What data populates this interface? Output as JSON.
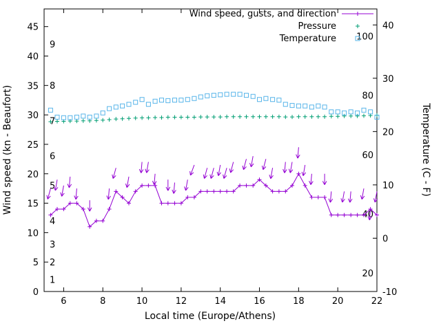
{
  "chart_data": {
    "type": "line",
    "title": "",
    "xlabel": "Local time (Europe/Athens)",
    "ylabel_left": "Wind speed (kn - Beaufort)",
    "ylabel_right": "Temperature (C - F)",
    "xlim": [
      5,
      22
    ],
    "ylim_left": [
      0,
      48
    ],
    "ylim_right": [
      -10,
      43
    ],
    "xticks": [
      6,
      8,
      10,
      12,
      14,
      16,
      18,
      20,
      22
    ],
    "yticks_left": [
      0,
      5,
      10,
      15,
      20,
      25,
      30,
      35,
      40,
      45
    ],
    "yticks_right": [
      -10,
      0,
      10,
      20,
      30,
      40
    ],
    "grid": false,
    "legend_position": "top-right-inside",
    "legend": [
      {
        "label": "Wind speed, gusts, and direction",
        "marker": "line-plus",
        "color": "#9400d3"
      },
      {
        "label": "Pressure",
        "marker": "plus",
        "color": "#009e73"
      },
      {
        "label": "Temperature",
        "marker": "open-square",
        "color": "#56b4e9"
      }
    ],
    "beaufort_labels": [
      {
        "b": 1,
        "kn": 1
      },
      {
        "b": 2,
        "kn": 4
      },
      {
        "b": 3,
        "kn": 7
      },
      {
        "b": 4,
        "kn": 11
      },
      {
        "b": 5,
        "kn": 17
      },
      {
        "b": 6,
        "kn": 22
      },
      {
        "b": 7,
        "kn": 28
      },
      {
        "b": 8,
        "kn": 34
      },
      {
        "b": 9,
        "kn": 41
      }
    ],
    "fahrenheit_labels": [
      20,
      40,
      60,
      80,
      100
    ],
    "x": [
      5.33,
      5.67,
      6,
      6.33,
      6.67,
      7,
      7.33,
      7.67,
      8,
      8.33,
      8.67,
      9,
      9.33,
      9.67,
      10,
      10.33,
      10.67,
      11,
      11.33,
      11.67,
      12,
      12.33,
      12.67,
      13,
      13.33,
      13.67,
      14,
      14.33,
      14.67,
      15,
      15.33,
      15.67,
      16,
      16.33,
      16.67,
      17,
      17.33,
      17.67,
      18,
      18.33,
      18.67,
      19,
      19.33,
      19.67,
      20,
      20.33,
      20.67,
      21,
      21.33,
      21.67,
      22
    ],
    "wind_speed_kn": [
      13,
      14,
      14,
      15,
      15,
      14,
      11,
      12,
      12,
      14,
      17,
      16,
      15,
      17,
      18,
      18,
      18,
      15,
      15,
      15,
      15,
      16,
      16,
      17,
      17,
      17,
      17,
      17,
      17,
      18,
      18,
      18,
      19,
      18,
      17,
      17,
      17,
      18,
      20,
      18,
      16,
      16,
      16,
      13,
      13,
      13,
      13,
      13,
      13,
      14,
      13
    ],
    "pressure_inhg": [
      28.85,
      28.9,
      28.9,
      28.95,
      28.95,
      29.0,
      29.0,
      29.05,
      29.1,
      29.2,
      29.3,
      29.35,
      29.4,
      29.45,
      29.5,
      29.5,
      29.55,
      29.55,
      29.6,
      29.6,
      29.6,
      29.6,
      29.6,
      29.65,
      29.65,
      29.65,
      29.65,
      29.7,
      29.7,
      29.7,
      29.7,
      29.7,
      29.7,
      29.7,
      29.7,
      29.7,
      29.65,
      29.65,
      29.7,
      29.7,
      29.7,
      29.7,
      29.7,
      29.75,
      29.75,
      29.8,
      29.8,
      29.8,
      29.85,
      29.9,
      29.95
    ],
    "temperature_c": [
      24.0,
      22.7,
      22.6,
      22.6,
      22.7,
      22.9,
      22.7,
      22.9,
      23.5,
      24.3,
      24.6,
      24.8,
      25.1,
      25.5,
      26.0,
      25.1,
      25.7,
      25.9,
      25.8,
      25.9,
      25.9,
      26.0,
      26.2,
      26.5,
      26.7,
      26.8,
      26.9,
      27.0,
      27.0,
      27.0,
      26.8,
      26.6,
      26.0,
      26.2,
      26.0,
      25.9,
      25.1,
      24.9,
      24.8,
      24.8,
      24.6,
      24.8,
      24.6,
      23.7,
      23.7,
      23.5,
      23.7,
      23.5,
      24.0,
      23.7,
      22.7
    ],
    "gusts": [
      [
        5.33,
        17.5,
        195
      ],
      [
        5.67,
        19,
        190
      ],
      [
        6.0,
        18,
        190
      ],
      [
        6.33,
        19.5,
        185
      ],
      [
        6.67,
        17.5,
        185
      ],
      [
        7.33,
        15.5,
        180
      ],
      [
        8.33,
        17.5,
        185
      ],
      [
        8.67,
        21,
        195
      ],
      [
        9.33,
        19.5,
        190
      ],
      [
        10.0,
        22,
        185
      ],
      [
        10.33,
        22,
        190
      ],
      [
        10.67,
        20,
        185
      ],
      [
        11.33,
        19,
        180
      ],
      [
        11.67,
        18.5,
        185
      ],
      [
        12.33,
        19,
        190
      ],
      [
        12.67,
        21.5,
        200
      ],
      [
        13.33,
        21,
        195
      ],
      [
        13.67,
        21,
        195
      ],
      [
        14.0,
        21.5,
        190
      ],
      [
        14.33,
        21,
        195
      ],
      [
        14.67,
        22,
        195
      ],
      [
        15.33,
        22.5,
        195
      ],
      [
        15.67,
        23,
        190
      ],
      [
        16.33,
        22.5,
        195
      ],
      [
        16.67,
        21,
        190
      ],
      [
        17.33,
        22,
        185
      ],
      [
        17.67,
        22,
        190
      ],
      [
        18.0,
        24.5,
        185
      ],
      [
        18.33,
        21.5,
        190
      ],
      [
        18.67,
        20,
        185
      ],
      [
        19.33,
        20,
        180
      ],
      [
        19.67,
        17,
        185
      ],
      [
        20.33,
        17,
        190
      ],
      [
        20.67,
        17,
        185
      ],
      [
        21.33,
        17.5,
        190
      ],
      [
        21.67,
        14,
        185
      ],
      [
        22.0,
        17,
        190
      ]
    ]
  }
}
